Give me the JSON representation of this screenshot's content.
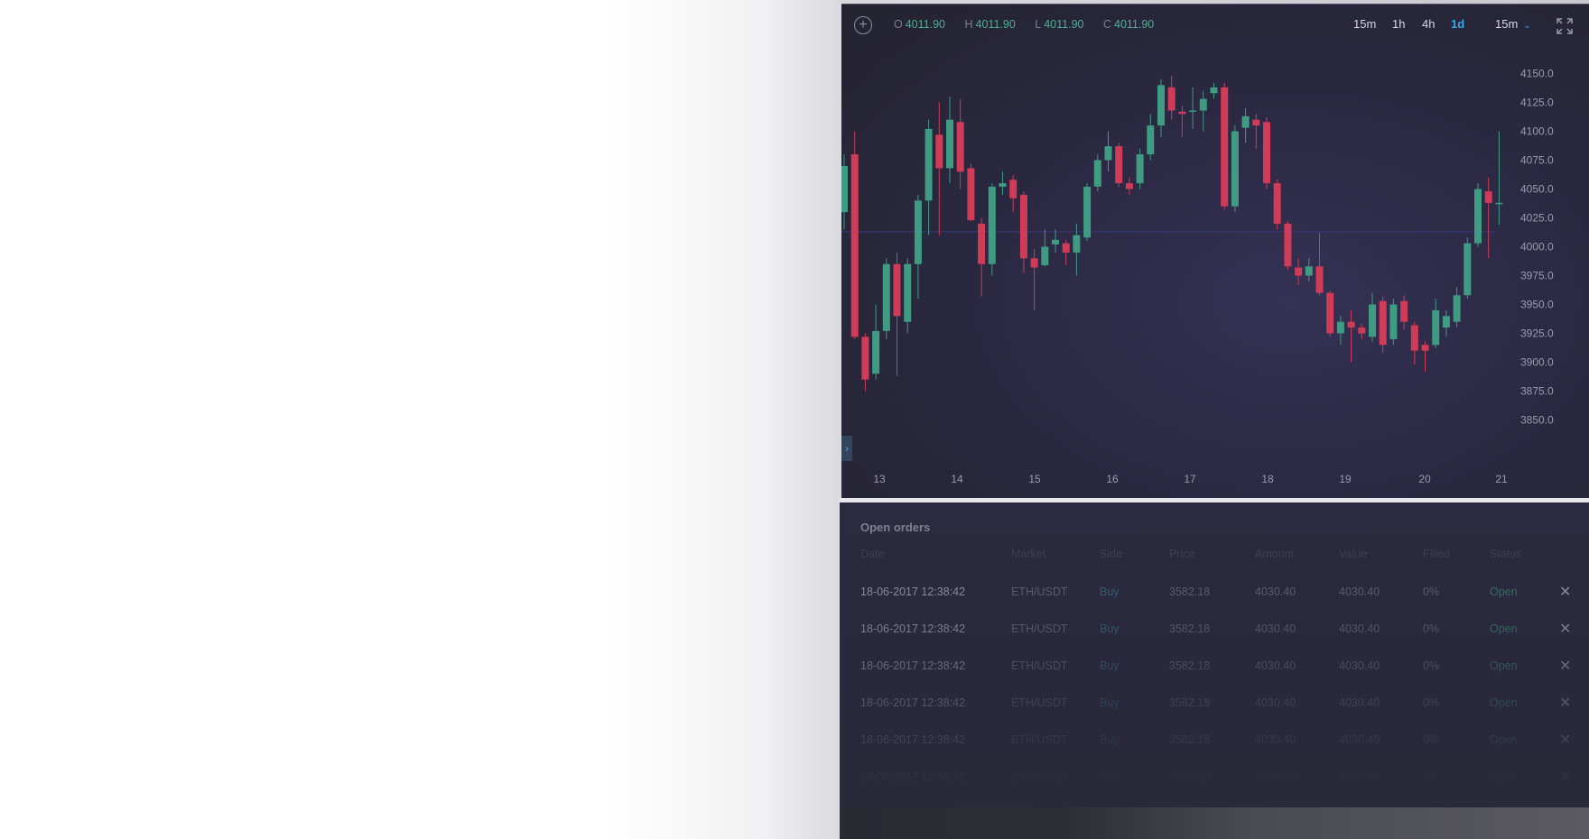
{
  "ohlc": {
    "o_label": "O",
    "o_value": "4011.90",
    "h_label": "H",
    "h_value": "4011.90",
    "l_label": "L",
    "l_value": "4011.90",
    "c_label": "C",
    "c_value": "4011.90"
  },
  "timeframes": [
    "15m",
    "1h",
    "4h",
    "1d"
  ],
  "active_timeframe": "1d",
  "timeframe_select": "15m",
  "colors": {
    "up": "#3f9b82",
    "down": "#d03b57",
    "accent": "#38a9e8"
  },
  "chart_data": {
    "type": "candlestick",
    "x_ticks": [
      "13",
      "14",
      "15",
      "16",
      "17",
      "18",
      "19",
      "20",
      "21"
    ],
    "y_ticks": [
      "4150.0",
      "4125.0",
      "4100.0",
      "4075.0",
      "4050.0",
      "4025.0",
      "4000.0",
      "3975.0",
      "3950.0",
      "3925.0",
      "3900.0",
      "3875.0",
      "3850.0"
    ],
    "ylim": [
      3850,
      4150
    ],
    "current_price_line": 4013,
    "candles": [
      {
        "o": 4030,
        "c": 4070,
        "h": 4080,
        "l": 4015
      },
      {
        "o": 4080,
        "c": 3922,
        "h": 4100,
        "l": 3920
      },
      {
        "o": 3922,
        "c": 3885,
        "h": 3925,
        "l": 3875
      },
      {
        "o": 3890,
        "c": 3927,
        "h": 3950,
        "l": 3885
      },
      {
        "o": 3927,
        "c": 3985,
        "h": 3990,
        "l": 3920
      },
      {
        "o": 3985,
        "c": 3940,
        "h": 3995,
        "l": 3888
      },
      {
        "o": 3935,
        "c": 3985,
        "h": 3990,
        "l": 3925
      },
      {
        "o": 3985,
        "c": 4040,
        "h": 4045,
        "l": 3955
      },
      {
        "o": 4040,
        "c": 4102,
        "h": 4110,
        "l": 4010
      },
      {
        "o": 4097,
        "c": 4068,
        "h": 4125,
        "l": 4010
      },
      {
        "o": 4068,
        "c": 4110,
        "h": 4130,
        "l": 4055
      },
      {
        "o": 4108,
        "c": 4065,
        "h": 4128,
        "l": 4050
      },
      {
        "o": 4068,
        "c": 4023,
        "h": 4072,
        "l": 4022
      },
      {
        "o": 4020,
        "c": 3985,
        "h": 4025,
        "l": 3957
      },
      {
        "o": 3985,
        "c": 4052,
        "h": 4055,
        "l": 3975
      },
      {
        "o": 4052,
        "c": 4055,
        "h": 4065,
        "l": 4045
      },
      {
        "o": 4058,
        "c": 4042,
        "h": 4062,
        "l": 4030
      },
      {
        "o": 4045,
        "c": 3990,
        "h": 4048,
        "l": 3977
      },
      {
        "o": 3990,
        "c": 3982,
        "h": 3998,
        "l": 3945
      },
      {
        "o": 3984,
        "c": 4000,
        "h": 4015,
        "l": 3983
      },
      {
        "o": 4002,
        "c": 4006,
        "h": 4015,
        "l": 3995
      },
      {
        "o": 4003,
        "c": 3995,
        "h": 4006,
        "l": 3984
      },
      {
        "o": 3995,
        "c": 4010,
        "h": 4020,
        "l": 3975
      },
      {
        "o": 4008,
        "c": 4052,
        "h": 4055,
        "l": 4005
      },
      {
        "o": 4052,
        "c": 4075,
        "h": 4080,
        "l": 4048
      },
      {
        "o": 4075,
        "c": 4087,
        "h": 4100,
        "l": 4065
      },
      {
        "o": 4087,
        "c": 4055,
        "h": 4090,
        "l": 4052
      },
      {
        "o": 4055,
        "c": 4050,
        "h": 4060,
        "l": 4045
      },
      {
        "o": 4055,
        "c": 4080,
        "h": 4085,
        "l": 4050
      },
      {
        "o": 4080,
        "c": 4105,
        "h": 4115,
        "l": 4075
      },
      {
        "o": 4105,
        "c": 4140,
        "h": 4145,
        "l": 4095
      },
      {
        "o": 4138,
        "c": 4118,
        "h": 4148,
        "l": 4110
      },
      {
        "o": 4117,
        "c": 4115,
        "h": 4122,
        "l": 4095
      },
      {
        "o": 4117,
        "c": 4118,
        "h": 4138,
        "l": 4102
      },
      {
        "o": 4118,
        "c": 4128,
        "h": 4135,
        "l": 4100
      },
      {
        "o": 4133,
        "c": 4138,
        "h": 4142,
        "l": 4128
      },
      {
        "o": 4138,
        "c": 4035,
        "h": 4142,
        "l": 4032
      },
      {
        "o": 4035,
        "c": 4100,
        "h": 4105,
        "l": 4030
      },
      {
        "o": 4103,
        "c": 4113,
        "h": 4120,
        "l": 4090
      },
      {
        "o": 4110,
        "c": 4105,
        "h": 4115,
        "l": 4085
      },
      {
        "o": 4108,
        "c": 4055,
        "h": 4112,
        "l": 4050
      },
      {
        "o": 4055,
        "c": 4020,
        "h": 4058,
        "l": 4015
      },
      {
        "o": 4020,
        "c": 3983,
        "h": 4022,
        "l": 3980
      },
      {
        "o": 3982,
        "c": 3975,
        "h": 3990,
        "l": 3967
      },
      {
        "o": 3975,
        "c": 3983,
        "h": 3990,
        "l": 3970
      },
      {
        "o": 3983,
        "c": 3960,
        "h": 4012,
        "l": 3958
      },
      {
        "o": 3960,
        "c": 3925,
        "h": 3962,
        "l": 3922
      },
      {
        "o": 3925,
        "c": 3935,
        "h": 3940,
        "l": 3915
      },
      {
        "o": 3935,
        "c": 3930,
        "h": 3945,
        "l": 3900
      },
      {
        "o": 3930,
        "c": 3925,
        "h": 3933,
        "l": 3920
      },
      {
        "o": 3922,
        "c": 3950,
        "h": 3960,
        "l": 3918
      },
      {
        "o": 3953,
        "c": 3915,
        "h": 3957,
        "l": 3908
      },
      {
        "o": 3920,
        "c": 3950,
        "h": 3955,
        "l": 3915
      },
      {
        "o": 3953,
        "c": 3935,
        "h": 3958,
        "l": 3928
      },
      {
        "o": 3932,
        "c": 3910,
        "h": 3935,
        "l": 3898
      },
      {
        "o": 3915,
        "c": 3910,
        "h": 3918,
        "l": 3892
      },
      {
        "o": 3915,
        "c": 3945,
        "h": 3955,
        "l": 3912
      },
      {
        "o": 3930,
        "c": 3940,
        "h": 3945,
        "l": 3922
      },
      {
        "o": 3935,
        "c": 3958,
        "h": 3965,
        "l": 3930
      },
      {
        "o": 3958,
        "c": 4003,
        "h": 4008,
        "l": 3955
      },
      {
        "o": 4003,
        "c": 4050,
        "h": 4055,
        "l": 4000
      },
      {
        "o": 4048,
        "c": 4038,
        "h": 4060,
        "l": 3990
      },
      {
        "o": 4038,
        "c": 4038,
        "h": 4100,
        "l": 4019
      }
    ]
  },
  "orders": {
    "title": "Open orders",
    "headers": {
      "date": "Date",
      "market": "Market",
      "side": "Side",
      "price": "Price",
      "amount": "Amount",
      "value": "Value",
      "filled": "Filled",
      "status": "Status"
    },
    "rows": [
      {
        "date": "18-06-2017 12:38:42",
        "market": "ETH/USDT",
        "side": "Buy",
        "price": "3582.18",
        "amount": "4030.40",
        "value": "4030.40",
        "filled": "0%",
        "status": "Open"
      },
      {
        "date": "18-06-2017 12:38:42",
        "market": "ETH/USDT",
        "side": "Buy",
        "price": "3582.18",
        "amount": "4030.40",
        "value": "4030.40",
        "filled": "0%",
        "status": "Open"
      },
      {
        "date": "18-06-2017 12:38:42",
        "market": "ETH/USDT",
        "side": "Buy",
        "price": "3582.18",
        "amount": "4030.40",
        "value": "4030.40",
        "filled": "0%",
        "status": "Open"
      },
      {
        "date": "18-06-2017 12:38:42",
        "market": "ETH/USDT",
        "side": "Buy",
        "price": "3582.18",
        "amount": "4030.40",
        "value": "4030.40",
        "filled": "0%",
        "status": "Open"
      },
      {
        "date": "18-06-2017 12:38:42",
        "market": "ETH/USDT",
        "side": "Buy",
        "price": "3582.18",
        "amount": "4030.40",
        "value": "4030.40",
        "filled": "0%",
        "status": "Open"
      },
      {
        "date": "18-06-2017 12:38:42",
        "market": "ETH/USDT",
        "side": "Buy",
        "price": "3582.18",
        "amount": "4030.40",
        "value": "4030.40",
        "filled": "0%",
        "status": "Open"
      }
    ]
  }
}
